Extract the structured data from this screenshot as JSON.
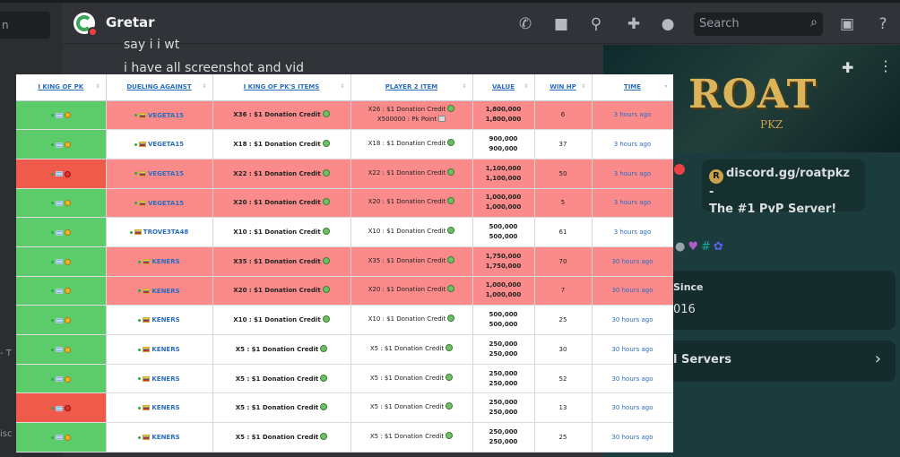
{
  "discord": {
    "left_search_text": "n",
    "left_dash_text": "- T",
    "left_bottom_text": "isc",
    "header_name": "Gretar",
    "search_placeholder": "Search",
    "chat_lines": [
      "say i i wt",
      "i have all screenshot and vid"
    ],
    "profile": {
      "logo_text": "ROAT",
      "logo_sub": "PKZ",
      "bubble_line1": "discord.gg/roatpkz -",
      "bubble_line2": "The #1 PvP Server!",
      "since_label": "Since",
      "since_value": "016",
      "mutual_label": "l Servers"
    },
    "icons": [
      "phone-icon",
      "video-icon",
      "pin-icon",
      "add-member-icon",
      "profile-icon",
      "inbox-icon",
      "help-icon"
    ]
  },
  "table": {
    "headers": [
      "I KING OF PK",
      "DUELING AGAINST",
      "I KING OF PK'S ITEMS",
      "PLAYER 2 ITEM",
      "VALUE",
      "WIN HP",
      "TIME"
    ],
    "rows": [
      {
        "pk_result": "win",
        "row_state": "lost",
        "opponent": "VEGETA15",
        "opp_flag": "ve",
        "items": "X36 : $1 Donation Credit",
        "p2_line1": "X26 : $1 Donation Credit",
        "p2_line2": "X500000 : Pk Point",
        "value1": "1,800,000",
        "value2": "1,800,000",
        "win_hp": "6",
        "time": "3 hours ago"
      },
      {
        "pk_result": "win",
        "row_state": "won",
        "opponent": "VEGETA15",
        "opp_flag": "ve",
        "items": "X18 : $1 Donation Credit",
        "p2_line1": "X18 : $1 Donation Credit",
        "p2_line2": "",
        "value1": "900,000",
        "value2": "900,000",
        "win_hp": "37",
        "time": "3 hours ago"
      },
      {
        "pk_result": "loss",
        "row_state": "lost",
        "opponent": "VEGETA15",
        "opp_flag": "ve",
        "items": "X22 : $1 Donation Credit",
        "p2_line1": "X22 : $1 Donation Credit",
        "p2_line2": "",
        "value1": "1,100,000",
        "value2": "1,100,000",
        "win_hp": "50",
        "time": "3 hours ago"
      },
      {
        "pk_result": "win",
        "row_state": "lost",
        "opponent": "VEGETA15",
        "opp_flag": "ve",
        "items": "X20 : $1 Donation Credit",
        "p2_line1": "X20 : $1 Donation Credit",
        "p2_line2": "",
        "value1": "1,000,000",
        "value2": "1,000,000",
        "win_hp": "5",
        "time": "3 hours ago"
      },
      {
        "pk_result": "win",
        "row_state": "won",
        "opponent": "TROVE3TA48",
        "opp_flag": "ve",
        "items": "X10 : $1 Donation Credit",
        "p2_line1": "X10 : $1 Donation Credit",
        "p2_line2": "",
        "value1": "500,000",
        "value2": "500,000",
        "win_hp": "61",
        "time": "3 hours ago"
      },
      {
        "pk_result": "win",
        "row_state": "lost",
        "opponent": "KENERS",
        "opp_flag": "ve",
        "items": "X35 : $1 Donation Credit",
        "p2_line1": "X35 : $1 Donation Credit",
        "p2_line2": "",
        "value1": "1,750,000",
        "value2": "1,750,000",
        "win_hp": "70",
        "time": "30 hours ago"
      },
      {
        "pk_result": "win",
        "row_state": "lost",
        "opponent": "KENERS",
        "opp_flag": "ve",
        "items": "X20 : $1 Donation Credit",
        "p2_line1": "X20 : $1 Donation Credit",
        "p2_line2": "",
        "value1": "1,000,000",
        "value2": "1,000,000",
        "win_hp": "7",
        "time": "30 hours ago"
      },
      {
        "pk_result": "win",
        "row_state": "won",
        "opponent": "KENERS",
        "opp_flag": "ve",
        "items": "X10 : $1 Donation Credit",
        "p2_line1": "X10 : $1 Donation Credit",
        "p2_line2": "",
        "value1": "500,000",
        "value2": "500,000",
        "win_hp": "25",
        "time": "30 hours ago"
      },
      {
        "pk_result": "win",
        "row_state": "won",
        "opponent": "KENERS",
        "opp_flag": "ve",
        "items": "X5 : $1 Donation Credit",
        "p2_line1": "X5 : $1 Donation Credit",
        "p2_line2": "",
        "value1": "250,000",
        "value2": "250,000",
        "win_hp": "30",
        "time": "30 hours ago"
      },
      {
        "pk_result": "win",
        "row_state": "won",
        "opponent": "KENERS",
        "opp_flag": "ve",
        "items": "X5 : $1 Donation Credit",
        "p2_line1": "X5 : $1 Donation Credit",
        "p2_line2": "",
        "value1": "250,000",
        "value2": "250,000",
        "win_hp": "52",
        "time": "30 hours ago"
      },
      {
        "pk_result": "loss",
        "row_state": "won",
        "opponent": "KENERS",
        "opp_flag": "ve",
        "items": "X5 : $1 Donation Credit",
        "p2_line1": "X5 : $1 Donation Credit",
        "p2_line2": "",
        "value1": "250,000",
        "value2": "250,000",
        "win_hp": "13",
        "time": "30 hours ago"
      },
      {
        "pk_result": "win",
        "row_state": "won",
        "opponent": "KENERS",
        "opp_flag": "ve",
        "items": "X5 : $1 Donation Credit",
        "p2_line1": "X5 : $1 Donation Credit",
        "p2_line2": "",
        "value1": "250,000",
        "value2": "250,000",
        "win_hp": "25",
        "time": "30 hours ago"
      }
    ]
  },
  "colors": {
    "win_green": "#5ccc6b",
    "loss_red": "#ef5a4a",
    "lost_row_pink": "#fb8b8b",
    "link_blue": "#2a6dbf"
  }
}
